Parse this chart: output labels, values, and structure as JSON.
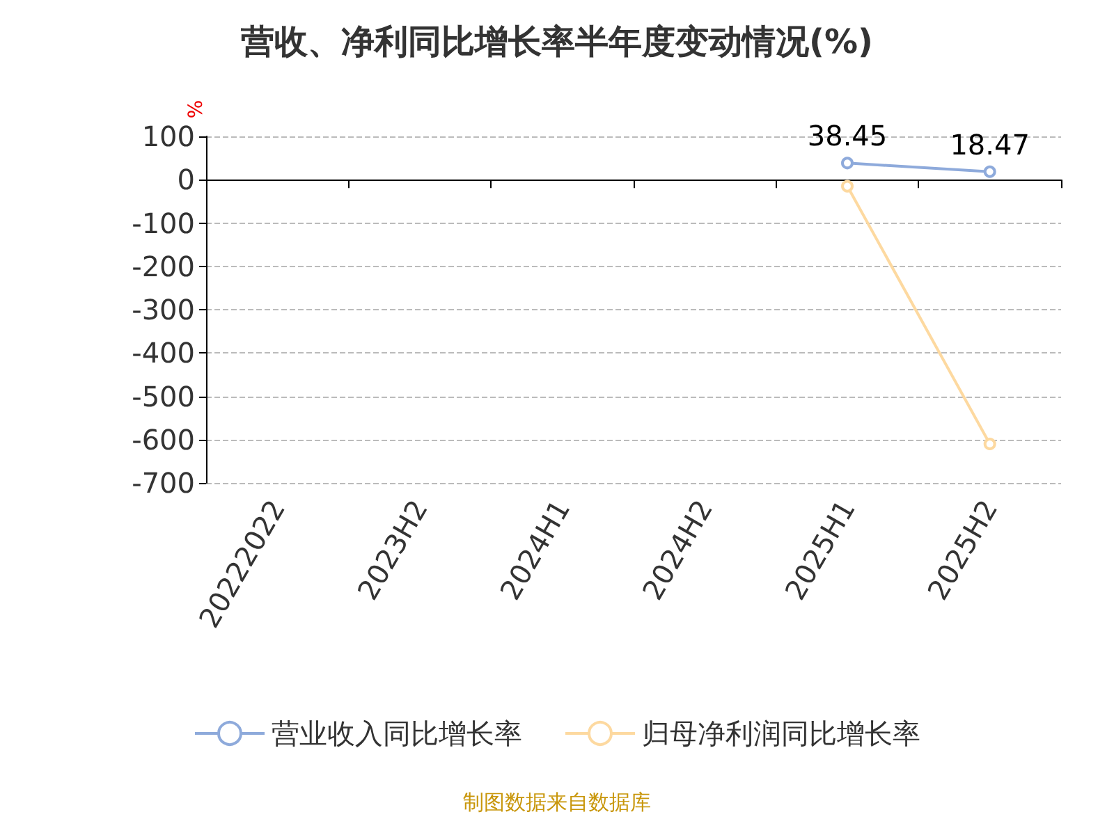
{
  "chart_data": {
    "type": "line",
    "title": "营收、净利同比增长率半年度变动情况(%)",
    "ylabel": "%",
    "categories": [
      "20222022",
      "2023H2",
      "2024H1",
      "2024H2",
      "2025H1",
      "2025H2"
    ],
    "series": [
      {
        "name": "营业收入同比增长率",
        "color": "#8eaadb",
        "values": [
          null,
          null,
          null,
          null,
          38.45,
          18.47
        ],
        "value_labels": [
          null,
          null,
          null,
          null,
          "38.45",
          "18.47"
        ]
      },
      {
        "name": "归母净利润同比增长率",
        "color": "#fdd9a0",
        "values": [
          null,
          null,
          null,
          null,
          -15,
          -610
        ]
      }
    ],
    "ylim": [
      -700,
      100
    ],
    "yticks": [
      -700,
      -600,
      -500,
      -400,
      -300,
      -200,
      -100,
      0,
      100
    ],
    "grid": "y",
    "legend": "bottom",
    "marker": "circle",
    "line_style": "solid",
    "annotations": [
      "制图数据来自数据库"
    ]
  }
}
